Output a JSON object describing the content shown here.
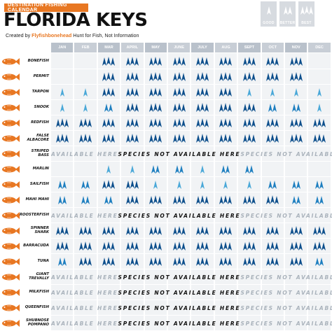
{
  "header": {
    "tag": "DESTINATION FISHING CALENDAR",
    "title": "FLORIDA KEYS",
    "credit_prefix": "Created by",
    "credit_brand": "Flyfishbonehead",
    "credit_suffix": "Hunt for Fish, Not Information"
  },
  "legend": [
    {
      "label": "GOOD",
      "level": 1
    },
    {
      "label": "BETTER",
      "level": 2
    },
    {
      "label": "BEST",
      "level": 3
    }
  ],
  "months": [
    "JAN",
    "FEB",
    "MAR",
    "APRIL",
    "MAY",
    "JUNE",
    "JULY",
    "AUG",
    "SEPT",
    "OCT",
    "NOV",
    "DEC"
  ],
  "not_available_text": "SPECIES NOT AVAILABLE HERE",
  "colors": {
    "good": "#4aa8d8",
    "better": "#1e7fc0",
    "best": "#0d4f8c",
    "accent": "#e87722",
    "fish": "#e87722"
  },
  "species": [
    {
      "name": "BONEFISH",
      "ratings": [
        0,
        0,
        3,
        3,
        3,
        3,
        3,
        3,
        3,
        3,
        3,
        0
      ]
    },
    {
      "name": "PERMIT",
      "ratings": [
        0,
        0,
        3,
        3,
        3,
        3,
        3,
        3,
        3,
        3,
        3,
        0
      ]
    },
    {
      "name": "TARPON",
      "ratings": [
        1,
        1,
        3,
        3,
        3,
        3,
        3,
        3,
        1,
        1,
        1,
        1
      ]
    },
    {
      "name": "SNOOK",
      "ratings": [
        1,
        1,
        2,
        3,
        3,
        3,
        3,
        3,
        3,
        2,
        2,
        1
      ]
    },
    {
      "name": "REDFISH",
      "ratings": [
        3,
        3,
        3,
        3,
        3,
        3,
        3,
        3,
        3,
        3,
        3,
        3
      ]
    },
    {
      "name": "FALSE ALBACORE",
      "ratings": [
        3,
        3,
        3,
        3,
        3,
        3,
        3,
        3,
        3,
        3,
        3,
        3
      ]
    },
    {
      "name": "STRIPED BASS",
      "ratings": null
    },
    {
      "name": "MARLIN",
      "ratings": [
        0,
        0,
        1,
        1,
        2,
        2,
        1,
        2,
        2,
        0,
        0,
        0
      ]
    },
    {
      "name": "SAILFISH",
      "ratings": [
        2,
        2,
        3,
        3,
        1,
        1,
        1,
        1,
        1,
        2,
        2,
        2
      ]
    },
    {
      "name": "MAHI MAHI",
      "ratings": [
        2,
        2,
        2,
        3,
        3,
        3,
        3,
        3,
        3,
        3,
        2,
        2
      ]
    },
    {
      "name": "ROOSTERFISH",
      "ratings": null
    },
    {
      "name": "SPINNER SHARK",
      "ratings": [
        3,
        3,
        3,
        3,
        3,
        3,
        3,
        3,
        3,
        3,
        3,
        3
      ]
    },
    {
      "name": "BARRACUDA",
      "ratings": [
        3,
        3,
        3,
        3,
        3,
        3,
        3,
        3,
        3,
        3,
        3,
        3
      ]
    },
    {
      "name": "TUNA",
      "ratings": [
        2,
        3,
        3,
        3,
        3,
        3,
        3,
        3,
        3,
        3,
        3,
        2
      ]
    },
    {
      "name": "GIANT TREVALLY",
      "ratings": null
    },
    {
      "name": "MILKFISH",
      "ratings": null
    },
    {
      "name": "QUEENFISH",
      "ratings": null
    },
    {
      "name": "SHUBNOSE POMPANO",
      "ratings": null
    }
  ]
}
